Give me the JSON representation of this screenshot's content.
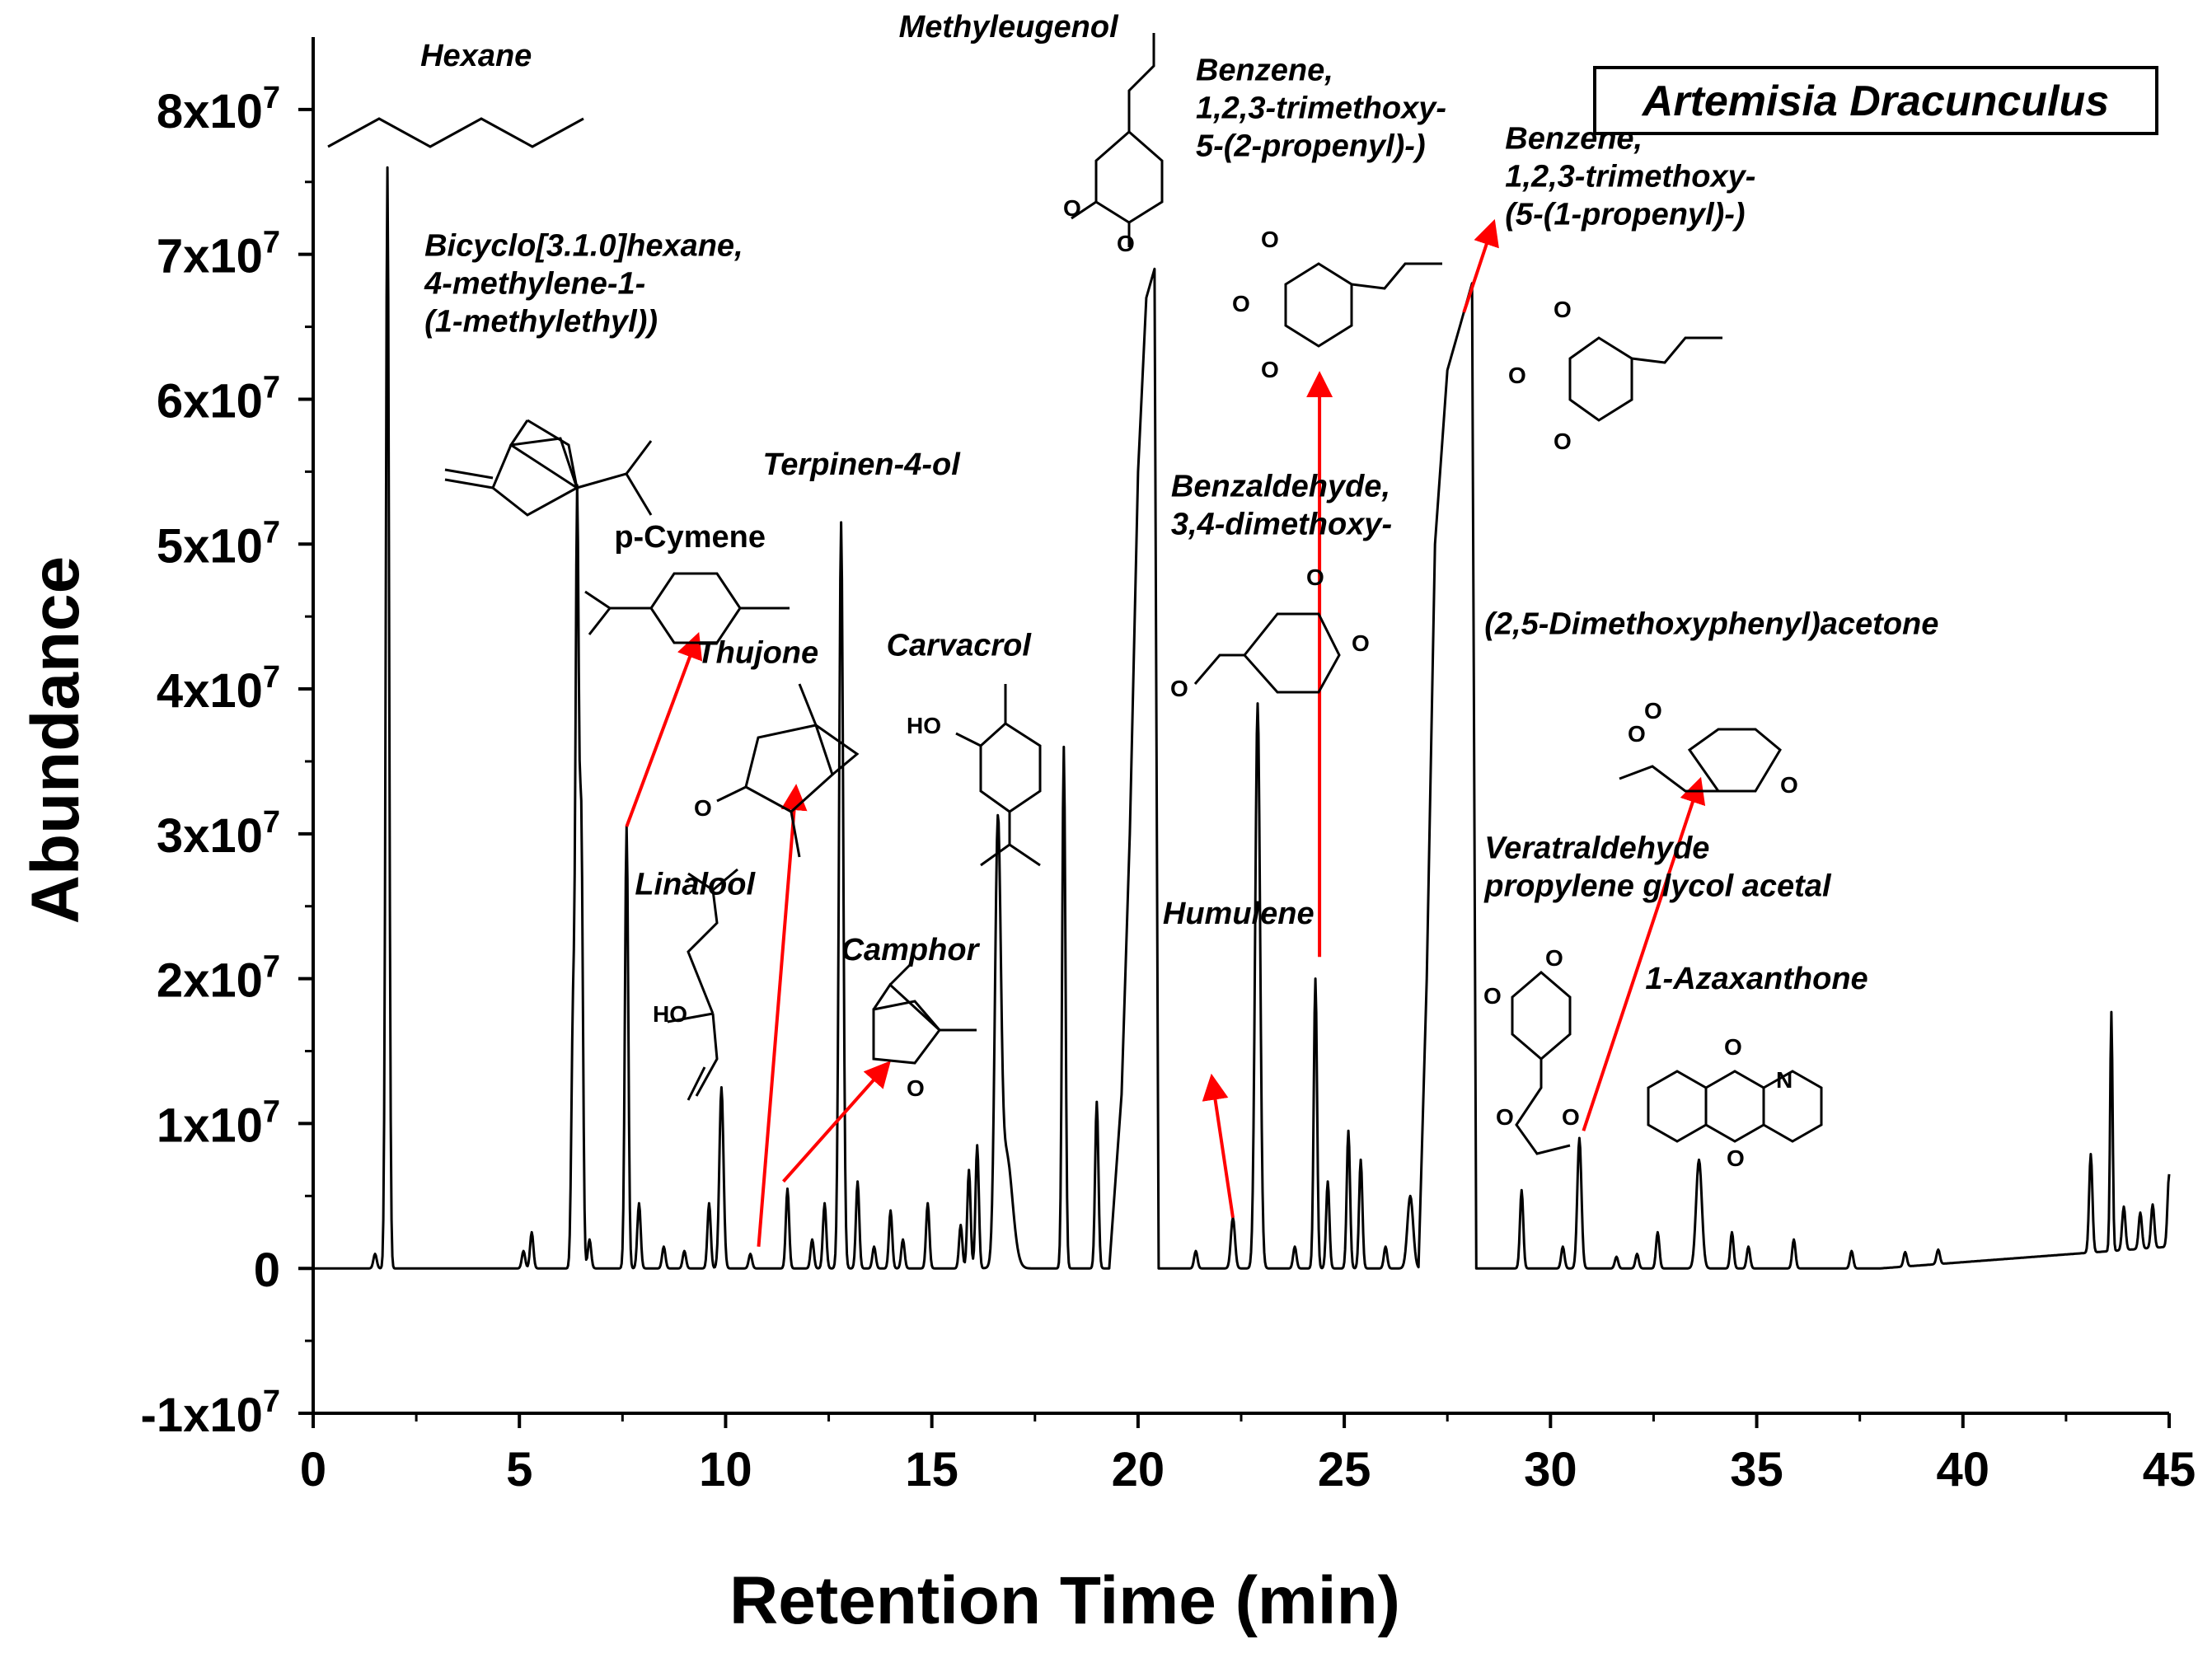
{
  "chart_data": {
    "type": "line",
    "legend": "Artemisia Dracunculus",
    "xlabel": "Retention Time (min)",
    "ylabel": "Abundance",
    "xlim": [
      0,
      45
    ],
    "ylim": [
      -10000000,
      85000000
    ],
    "x_ticks": [
      0,
      5,
      10,
      15,
      20,
      25,
      30,
      35,
      40,
      45
    ],
    "x_tick_labels": [
      "0",
      "5",
      "10",
      "15",
      "20",
      "25",
      "30",
      "35",
      "40",
      "45"
    ],
    "y_ticks": [
      -10000000,
      0,
      10000000,
      20000000,
      30000000,
      40000000,
      50000000,
      60000000,
      70000000,
      80000000
    ],
    "y_tick_labels": [
      {
        "base": "-1x10",
        "exp": "7"
      },
      {
        "base": "0",
        "exp": ""
      },
      {
        "base": "1x10",
        "exp": "7"
      },
      {
        "base": "2x10",
        "exp": "7"
      },
      {
        "base": "3x10",
        "exp": "7"
      },
      {
        "base": "4x10",
        "exp": "7"
      },
      {
        "base": "5x10",
        "exp": "7"
      },
      {
        "base": "6x10",
        "exp": "7"
      },
      {
        "base": "7x10",
        "exp": "7"
      },
      {
        "base": "8x10",
        "exp": "7"
      }
    ],
    "series": [
      {
        "color": "#000000",
        "peaks": [
          {
            "x": 1.5,
            "y": 1000000,
            "w": 0.04
          },
          {
            "x": 1.8,
            "y": 76000000,
            "w": 0.04
          },
          {
            "x": 5.1,
            "y": 1200000,
            "w": 0.04
          },
          {
            "x": 5.3,
            "y": 2500000,
            "w": 0.04
          },
          {
            "x": 6.3,
            "y": 17000000,
            "w": 0.04
          },
          {
            "x": 6.4,
            "y": 52000000,
            "w": 0.04
          },
          {
            "x": 6.5,
            "y": 30000000,
            "w": 0.04
          },
          {
            "x": 6.7,
            "y": 2000000,
            "w": 0.04
          },
          {
            "x": 7.6,
            "y": 30500000,
            "w": 0.04
          },
          {
            "x": 7.9,
            "y": 4500000,
            "w": 0.04
          },
          {
            "x": 8.5,
            "y": 1500000,
            "w": 0.04
          },
          {
            "x": 9.0,
            "y": 1200000,
            "w": 0.04
          },
          {
            "x": 9.6,
            "y": 4500000,
            "w": 0.04
          },
          {
            "x": 9.9,
            "y": 12500000,
            "w": 0.05
          },
          {
            "x": 10.6,
            "y": 1000000,
            "w": 0.04
          },
          {
            "x": 11.5,
            "y": 5500000,
            "w": 0.04
          },
          {
            "x": 12.1,
            "y": 2000000,
            "w": 0.04
          },
          {
            "x": 12.4,
            "y": 4500000,
            "w": 0.04
          },
          {
            "x": 12.8,
            "y": 51500000,
            "w": 0.05
          },
          {
            "x": 13.2,
            "y": 6000000,
            "w": 0.04
          },
          {
            "x": 13.6,
            "y": 1500000,
            "w": 0.04
          },
          {
            "x": 14.0,
            "y": 4000000,
            "w": 0.04
          },
          {
            "x": 14.3,
            "y": 2000000,
            "w": 0.04
          },
          {
            "x": 14.9,
            "y": 4500000,
            "w": 0.04
          },
          {
            "x": 15.7,
            "y": 3000000,
            "w": 0.04
          },
          {
            "x": 15.9,
            "y": 6800000,
            "w": 0.04
          },
          {
            "x": 16.1,
            "y": 8500000,
            "w": 0.04
          },
          {
            "x": 16.6,
            "y": 28000000,
            "w": 0.07
          },
          {
            "x": 16.8,
            "y": 8000000,
            "w": 0.15
          },
          {
            "x": 18.2,
            "y": 36000000,
            "w": 0.04
          },
          {
            "x": 19.0,
            "y": 11500000,
            "w": 0.04
          },
          {
            "x": 21.4,
            "y": 1200000,
            "w": 0.04
          },
          {
            "x": 22.3,
            "y": 3500000,
            "w": 0.05
          },
          {
            "x": 22.9,
            "y": 39000000,
            "w": 0.06
          },
          {
            "x": 23.8,
            "y": 1500000,
            "w": 0.04
          },
          {
            "x": 24.3,
            "y": 20000000,
            "w": 0.04
          },
          {
            "x": 24.6,
            "y": 6000000,
            "w": 0.04
          },
          {
            "x": 25.1,
            "y": 9500000,
            "w": 0.04
          },
          {
            "x": 25.4,
            "y": 7500000,
            "w": 0.04
          },
          {
            "x": 26.0,
            "y": 1500000,
            "w": 0.04
          },
          {
            "x": 26.6,
            "y": 5000000,
            "w": 0.07
          },
          {
            "x": 29.3,
            "y": 5400000,
            "w": 0.04
          },
          {
            "x": 30.3,
            "y": 1500000,
            "w": 0.04
          },
          {
            "x": 30.7,
            "y": 9000000,
            "w": 0.05
          },
          {
            "x": 31.6,
            "y": 800000,
            "w": 0.04
          },
          {
            "x": 32.1,
            "y": 1000000,
            "w": 0.04
          },
          {
            "x": 32.6,
            "y": 2500000,
            "w": 0.04
          },
          {
            "x": 33.6,
            "y": 7500000,
            "w": 0.07
          },
          {
            "x": 34.4,
            "y": 2500000,
            "w": 0.04
          },
          {
            "x": 34.8,
            "y": 1500000,
            "w": 0.04
          },
          {
            "x": 35.9,
            "y": 2000000,
            "w": 0.04
          },
          {
            "x": 37.3,
            "y": 1200000,
            "w": 0.04
          },
          {
            "x": 38.6,
            "y": 1000000,
            "w": 0.04
          },
          {
            "x": 39.4,
            "y": 1000000,
            "w": 0.04
          },
          {
            "x": 43.1,
            "y": 6800000,
            "w": 0.04
          },
          {
            "x": 43.6,
            "y": 16500000,
            "w": 0.03
          },
          {
            "x": 43.9,
            "y": 3000000,
            "w": 0.04
          },
          {
            "x": 44.3,
            "y": 2500000,
            "w": 0.04
          },
          {
            "x": 44.6,
            "y": 3000000,
            "w": 0.04
          },
          {
            "x": 45.0,
            "y": 5000000,
            "w": 0.04
          }
        ],
        "broad_peaks": [
          {
            "x": [
              19.3,
              19.6,
              19.8,
              20.0,
              20.2,
              20.4,
              20.5
            ],
            "y": [
              0,
              12000000,
              30000000,
              55000000,
              67000000,
              69000000,
              0
            ]
          },
          {
            "x": [
              26.8,
              27.0,
              27.2,
              27.5,
              27.9,
              28.1,
              28.2
            ],
            "y": [
              0,
              20000000,
              50000000,
              62000000,
              66000000,
              68000000,
              0
            ]
          }
        ]
      }
    ],
    "annotations": [
      {
        "text": "Hexane",
        "lines": [
          "Hexane"
        ],
        "x": 2.6,
        "y": 83000000,
        "italic": true
      },
      {
        "text": "Bicyclo[3.1.0]hexane, 4-methylene-1-(1-methylethyl))",
        "lines": [
          "Bicyclo[3.1.0]hexane,",
          "4-methylene-1-",
          "(1-methylethyl))"
        ],
        "x": 2.7,
        "y": 69900000,
        "italic": true
      },
      {
        "text": "p-Cymene",
        "lines": [
          "p-Cymene"
        ],
        "x": 7.3,
        "y": 49800000,
        "italic": false
      },
      {
        "text": "Thujone",
        "lines": [
          "Thujone"
        ],
        "x": 9.3,
        "y": 41800000,
        "italic": true
      },
      {
        "text": "Terpinen-4-ol",
        "lines": [
          "Terpinen-4-ol"
        ],
        "x": 10.9,
        "y": 54800000,
        "italic": true
      },
      {
        "text": "Carvacrol",
        "lines": [
          "Carvacrol"
        ],
        "x": 13.9,
        "y": 42300000,
        "italic": true
      },
      {
        "text": "Linalool",
        "lines": [
          "Linalool"
        ],
        "x": 7.8,
        "y": 25800000,
        "italic": true
      },
      {
        "text": "Camphor",
        "lines": [
          "Camphor"
        ],
        "x": 12.8,
        "y": 21300000,
        "italic": true
      },
      {
        "text": "Methyleugenol",
        "lines": [
          "Methyleugenol"
        ],
        "x": 14.2,
        "y": 85000000,
        "italic": true
      },
      {
        "text": "Benzene, 1,2,3-trimethoxy-5-(2-propenyl)-)",
        "lines": [
          "Benzene,",
          "1,2,3-trimethoxy-",
          "5-(2-propenyl)-)"
        ],
        "x": 21.4,
        "y": 82000000,
        "italic": true
      },
      {
        "text": "Benzaldehyde, 3,4-dimethoxy-",
        "lines": [
          "Benzaldehyde,",
          "3,4-dimethoxy-"
        ],
        "x": 20.8,
        "y": 53300000,
        "italic": true
      },
      {
        "text": "Humulene",
        "lines": [
          "Humulene"
        ],
        "x": 20.6,
        "y": 23800000,
        "italic": true
      },
      {
        "text": "Benzene, 1,2,3-trimethoxy-(5-(1-propenyl)-)",
        "lines": [
          "Benzene,",
          "1,2,3-trimethoxy-",
          "(5-(1-propenyl)-)"
        ],
        "x": 28.9,
        "y": 77300000,
        "italic": true
      },
      {
        "text": "(2,5-Dimethoxyphenyl)acetone",
        "lines": [
          "(2,5-Dimethoxyphenyl)acetone"
        ],
        "x": 28.4,
        "y": 43800000,
        "italic": true
      },
      {
        "text": "Veratraldehyde propylene glycol acetal",
        "lines": [
          "Veratraldehyde",
          "propylene glycol acetal"
        ],
        "x": 28.4,
        "y": 28300000,
        "italic": true
      },
      {
        "text": "1-Azaxanthone",
        "lines": [
          "1-Azaxanthone"
        ],
        "x": 32.3,
        "y": 19300000,
        "italic": true
      }
    ],
    "arrows": [
      {
        "from": [
          7.6,
          30500000
        ],
        "to": [
          9.3,
          43500000
        ]
      },
      {
        "from": [
          10.8,
          1500000
        ],
        "to": [
          11.7,
          33000000
        ]
      },
      {
        "from": [
          11.4,
          6000000
        ],
        "to": [
          13.9,
          14000000
        ]
      },
      {
        "from": [
          22.3,
          3500000
        ],
        "to": [
          21.8,
          13000000
        ]
      },
      {
        "from": [
          24.4,
          21500000
        ],
        "to": [
          24.4,
          61500000
        ]
      },
      {
        "from": [
          27.9,
          66000000
        ],
        "to": [
          28.6,
          72000000
        ]
      },
      {
        "from": [
          30.8,
          9500000
        ],
        "to": [
          33.6,
          33500000
        ]
      }
    ],
    "grid": false
  }
}
